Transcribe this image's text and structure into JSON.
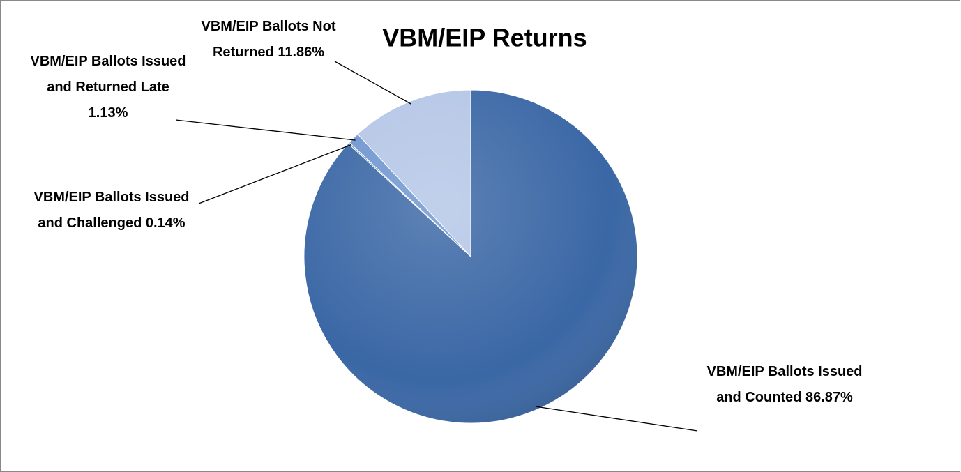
{
  "chart_data": {
    "type": "pie",
    "title": "VBM/EIP Returns",
    "categories": [
      "VBM/EIP Ballots Issued and Counted",
      "VBM/EIP Ballots Issued and Challenged",
      "VBM/EIP Ballots Issued and Returned Late",
      "VBM/EIP Ballots Not Returned"
    ],
    "values": [
      86.87,
      0.14,
      1.13,
      11.86
    ],
    "value_labels": [
      "86.87%",
      "0.14%",
      "1.13%",
      "11.86%"
    ],
    "colors": [
      "#3a67a5",
      "#4f7dbd",
      "#6e95d0",
      "#b4c6e6"
    ]
  }
}
